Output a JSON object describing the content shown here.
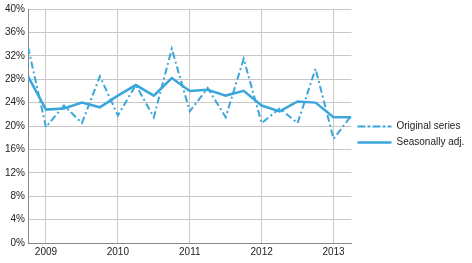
{
  "chart_data": {
    "type": "line",
    "categories": [
      null,
      "2009",
      null,
      null,
      null,
      "2010",
      null,
      null,
      null,
      "2011",
      null,
      null,
      null,
      "2012",
      null,
      null,
      null,
      "2013",
      null
    ],
    "series": [
      {
        "name": "Original series",
        "color": "#3aa6dc",
        "line_style": "dashdot",
        "marker": "none",
        "values": [
          33.5,
          19.8,
          23.5,
          20.5,
          28.5,
          21.8,
          27.0,
          21.5,
          33.2,
          22.5,
          26.5,
          21.5,
          31.5,
          20.5,
          23.0,
          20.5,
          29.8,
          17.8,
          21.8
        ]
      },
      {
        "name": "Seasonally adj.",
        "color": "#3aa6dc",
        "line_style": "solid",
        "marker": "none",
        "values": [
          28.5,
          22.8,
          23.0,
          24.0,
          23.2,
          25.2,
          27.0,
          25.2,
          28.2,
          26.0,
          26.2,
          25.2,
          26.0,
          23.5,
          22.5,
          24.2,
          24.0,
          21.5,
          21.5
        ]
      }
    ],
    "ylim": [
      0,
      40
    ],
    "yticks": [
      {
        "value": 0,
        "label": "0%"
      },
      {
        "value": 4,
        "label": "4%"
      },
      {
        "value": 8,
        "label": "8%"
      },
      {
        "value": 12,
        "label": "12%"
      },
      {
        "value": 16,
        "label": "16%"
      },
      {
        "value": 20,
        "label": "20%"
      },
      {
        "value": 24,
        "label": "24%"
      },
      {
        "value": 28,
        "label": "28%"
      },
      {
        "value": 32,
        "label": "32%"
      },
      {
        "value": 36,
        "label": "36%"
      },
      {
        "value": 40,
        "label": "40%"
      }
    ],
    "grid": true,
    "legend": "right"
  }
}
